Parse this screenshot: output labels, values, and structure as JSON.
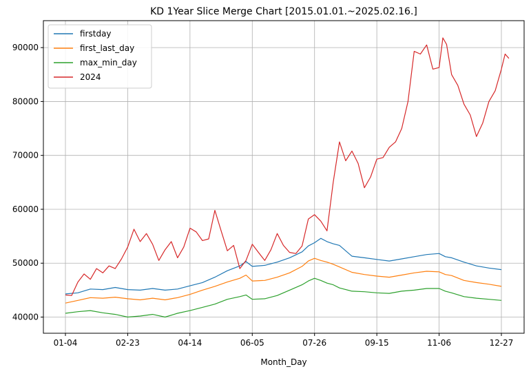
{
  "chart_data": {
    "type": "line",
    "title": "KD 1Year Slice Merge Chart [2015.01.01.~2025.02.16.]",
    "xlabel": "Month_Day",
    "ylabel": "",
    "x_tick_labels": [
      "01-04",
      "02-23",
      "04-14",
      "06-05",
      "07-26",
      "09-15",
      "11-06",
      "12-27"
    ],
    "x_tick_indices": [
      0,
      50,
      100,
      150,
      200,
      250,
      300,
      350
    ],
    "x_count": 351,
    "ylim": [
      37000,
      95000
    ],
    "y_ticks": [
      40000,
      50000,
      60000,
      70000,
      80000,
      90000
    ],
    "y_tick_labels": [
      "40000",
      "50000",
      "60000",
      "70000",
      "80000",
      "90000"
    ],
    "grid": true,
    "legend_position": "upper-left",
    "series": [
      {
        "name": "firstday",
        "color": "#1f77b4",
        "points": [
          [
            0,
            44300
          ],
          [
            10,
            44500
          ],
          [
            20,
            45200
          ],
          [
            30,
            45100
          ],
          [
            40,
            45500
          ],
          [
            50,
            45100
          ],
          [
            60,
            45000
          ],
          [
            70,
            45300
          ],
          [
            80,
            45000
          ],
          [
            90,
            45200
          ],
          [
            100,
            45800
          ],
          [
            110,
            46400
          ],
          [
            120,
            47400
          ],
          [
            130,
            48600
          ],
          [
            140,
            49500
          ],
          [
            145,
            50300
          ],
          [
            150,
            49400
          ],
          [
            160,
            49600
          ],
          [
            170,
            50200
          ],
          [
            180,
            51000
          ],
          [
            190,
            52100
          ],
          [
            195,
            53200
          ],
          [
            200,
            53800
          ],
          [
            205,
            54600
          ],
          [
            210,
            54000
          ],
          [
            215,
            53600
          ],
          [
            220,
            53300
          ],
          [
            230,
            51300
          ],
          [
            240,
            51000
          ],
          [
            250,
            50700
          ],
          [
            260,
            50400
          ],
          [
            270,
            50800
          ],
          [
            280,
            51200
          ],
          [
            290,
            51600
          ],
          [
            300,
            51800
          ],
          [
            305,
            51200
          ],
          [
            310,
            51000
          ],
          [
            320,
            50200
          ],
          [
            330,
            49500
          ],
          [
            340,
            49100
          ],
          [
            350,
            48800
          ]
        ]
      },
      {
        "name": "first_last_day",
        "color": "#ff7f0e",
        "points": [
          [
            0,
            42600
          ],
          [
            10,
            43100
          ],
          [
            20,
            43600
          ],
          [
            30,
            43500
          ],
          [
            40,
            43700
          ],
          [
            50,
            43400
          ],
          [
            60,
            43200
          ],
          [
            70,
            43500
          ],
          [
            80,
            43200
          ],
          [
            90,
            43600
          ],
          [
            100,
            44200
          ],
          [
            110,
            45000
          ],
          [
            120,
            45700
          ],
          [
            130,
            46500
          ],
          [
            140,
            47200
          ],
          [
            145,
            47800
          ],
          [
            150,
            46700
          ],
          [
            160,
            46800
          ],
          [
            170,
            47400
          ],
          [
            180,
            48200
          ],
          [
            190,
            49400
          ],
          [
            195,
            50400
          ],
          [
            200,
            50900
          ],
          [
            205,
            50500
          ],
          [
            210,
            50200
          ],
          [
            215,
            49800
          ],
          [
            220,
            49300
          ],
          [
            230,
            48300
          ],
          [
            240,
            47900
          ],
          [
            250,
            47600
          ],
          [
            260,
            47400
          ],
          [
            270,
            47800
          ],
          [
            280,
            48200
          ],
          [
            290,
            48500
          ],
          [
            300,
            48400
          ],
          [
            305,
            47900
          ],
          [
            310,
            47700
          ],
          [
            320,
            46800
          ],
          [
            330,
            46400
          ],
          [
            340,
            46100
          ],
          [
            350,
            45700
          ]
        ]
      },
      {
        "name": "max_min_day",
        "color": "#2ca02c",
        "points": [
          [
            0,
            40700
          ],
          [
            10,
            41000
          ],
          [
            20,
            41200
          ],
          [
            30,
            40800
          ],
          [
            40,
            40500
          ],
          [
            50,
            40000
          ],
          [
            60,
            40200
          ],
          [
            70,
            40500
          ],
          [
            80,
            40000
          ],
          [
            90,
            40700
          ],
          [
            100,
            41200
          ],
          [
            110,
            41800
          ],
          [
            120,
            42400
          ],
          [
            130,
            43300
          ],
          [
            140,
            43800
          ],
          [
            145,
            44100
          ],
          [
            150,
            43300
          ],
          [
            160,
            43400
          ],
          [
            170,
            44000
          ],
          [
            180,
            45000
          ],
          [
            190,
            46000
          ],
          [
            195,
            46700
          ],
          [
            200,
            47200
          ],
          [
            205,
            46800
          ],
          [
            210,
            46300
          ],
          [
            215,
            46000
          ],
          [
            220,
            45400
          ],
          [
            230,
            44800
          ],
          [
            240,
            44700
          ],
          [
            250,
            44500
          ],
          [
            260,
            44400
          ],
          [
            270,
            44800
          ],
          [
            280,
            45000
          ],
          [
            290,
            45300
          ],
          [
            300,
            45300
          ],
          [
            305,
            44800
          ],
          [
            310,
            44500
          ],
          [
            320,
            43800
          ],
          [
            330,
            43500
          ],
          [
            340,
            43300
          ],
          [
            350,
            43100
          ]
        ]
      },
      {
        "name": "2024",
        "color": "#d62728",
        "points": [
          [
            0,
            44100
          ],
          [
            5,
            44000
          ],
          [
            10,
            46500
          ],
          [
            15,
            48000
          ],
          [
            20,
            47000
          ],
          [
            25,
            49000
          ],
          [
            30,
            48200
          ],
          [
            35,
            49500
          ],
          [
            40,
            49000
          ],
          [
            45,
            50800
          ],
          [
            50,
            53000
          ],
          [
            55,
            56300
          ],
          [
            60,
            54000
          ],
          [
            65,
            55500
          ],
          [
            70,
            53500
          ],
          [
            75,
            50500
          ],
          [
            80,
            52500
          ],
          [
            85,
            54000
          ],
          [
            90,
            51000
          ],
          [
            95,
            53000
          ],
          [
            100,
            56500
          ],
          [
            105,
            55800
          ],
          [
            110,
            54200
          ],
          [
            115,
            54500
          ],
          [
            120,
            59800
          ],
          [
            125,
            56000
          ],
          [
            130,
            52300
          ],
          [
            135,
            53300
          ],
          [
            140,
            49000
          ],
          [
            145,
            50500
          ],
          [
            150,
            53500
          ],
          [
            155,
            52000
          ],
          [
            160,
            50500
          ],
          [
            165,
            52500
          ],
          [
            170,
            55500
          ],
          [
            175,
            53300
          ],
          [
            180,
            52000
          ],
          [
            185,
            51800
          ],
          [
            190,
            53200
          ],
          [
            195,
            58200
          ],
          [
            200,
            59000
          ],
          [
            205,
            57800
          ],
          [
            210,
            56000
          ],
          [
            215,
            65000
          ],
          [
            220,
            72500
          ],
          [
            225,
            69000
          ],
          [
            230,
            70800
          ],
          [
            235,
            68500
          ],
          [
            240,
            64000
          ],
          [
            245,
            66000
          ],
          [
            250,
            69300
          ],
          [
            255,
            69600
          ],
          [
            260,
            71500
          ],
          [
            265,
            72500
          ],
          [
            270,
            75000
          ],
          [
            275,
            80000
          ],
          [
            280,
            89300
          ],
          [
            285,
            88800
          ],
          [
            290,
            90500
          ],
          [
            295,
            86000
          ],
          [
            300,
            86300
          ],
          [
            303,
            91800
          ],
          [
            306,
            90600
          ],
          [
            310,
            85000
          ],
          [
            315,
            83000
          ],
          [
            320,
            79500
          ],
          [
            325,
            77500
          ],
          [
            330,
            73500
          ],
          [
            335,
            76000
          ],
          [
            340,
            80000
          ],
          [
            345,
            82000
          ],
          [
            350,
            86000
          ],
          [
            353,
            88800
          ],
          [
            356,
            88000
          ]
        ]
      }
    ]
  }
}
